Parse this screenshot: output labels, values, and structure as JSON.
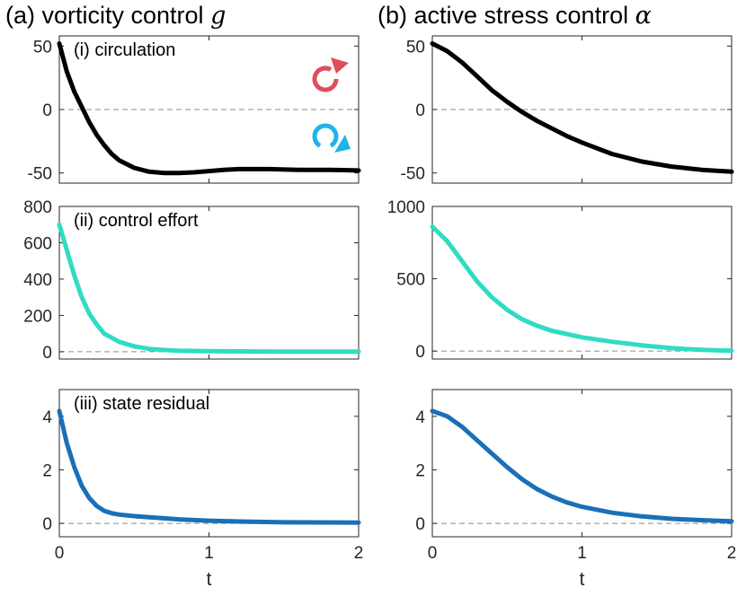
{
  "column_titles": [
    {
      "label": "(a) vorticity control",
      "symbol": "g"
    },
    {
      "label": "(b) active stress control",
      "symbol": "α"
    }
  ],
  "colors": {
    "circulation": "#000000",
    "control_effort": "#2fdcc2",
    "state_residual": "#1a6fb8",
    "zero_line": "#8c8c8c",
    "arrow_ccw": "#e04c5a",
    "arrow_cw": "#1fb4e8"
  },
  "icons": [
    "counterclockwise-arrow-icon",
    "clockwise-arrow-icon"
  ],
  "chart_data": [
    {
      "type": "line",
      "id": "a1",
      "title": "(i) circulation",
      "color_key": "circulation",
      "xlabel": "",
      "ylabel": "",
      "xlim": [
        0,
        2
      ],
      "ylim": [
        -58,
        58
      ],
      "yticks": [
        -50,
        0,
        50
      ],
      "ytick_labels": [
        "-50",
        "0",
        "50"
      ],
      "xticks": [
        0,
        1,
        2
      ],
      "xtick_labels": [],
      "zero_line": 0,
      "series": [
        {
          "name": "circulation",
          "x": [
            0,
            0.05,
            0.1,
            0.15,
            0.2,
            0.25,
            0.3,
            0.35,
            0.4,
            0.5,
            0.6,
            0.7,
            0.8,
            0.9,
            1.0,
            1.1,
            1.2,
            1.4,
            1.6,
            1.8,
            2.0
          ],
          "y": [
            52,
            30,
            14,
            2,
            -10,
            -20,
            -28,
            -35,
            -40,
            -46,
            -49,
            -50,
            -50,
            -49.5,
            -48.5,
            -47.5,
            -47,
            -47,
            -47.5,
            -47.5,
            -48
          ]
        }
      ]
    },
    {
      "type": "line",
      "id": "a2",
      "title": "(ii) control effort",
      "color_key": "control_effort",
      "xlabel": "",
      "ylabel": "",
      "xlim": [
        0,
        2
      ],
      "ylim": [
        -40,
        800
      ],
      "yticks": [
        0,
        200,
        400,
        600,
        800
      ],
      "ytick_labels": [
        "0",
        "200",
        "400",
        "600",
        "800"
      ],
      "xticks": [
        0,
        1,
        2
      ],
      "xtick_labels": [],
      "zero_line": 0,
      "series": [
        {
          "name": "control effort",
          "x": [
            0,
            0.05,
            0.1,
            0.15,
            0.2,
            0.25,
            0.3,
            0.4,
            0.5,
            0.6,
            0.7,
            0.8,
            1.0,
            1.2,
            1.5,
            2.0
          ],
          "y": [
            700,
            560,
            420,
            300,
            210,
            150,
            100,
            55,
            30,
            16,
            10,
            6,
            3,
            2,
            1,
            1
          ]
        }
      ]
    },
    {
      "type": "line",
      "id": "a3",
      "title": "(iii) state residual",
      "color_key": "state_residual",
      "xlabel": "t",
      "ylabel": "",
      "xlim": [
        0,
        2
      ],
      "ylim": [
        -0.5,
        5
      ],
      "yticks": [
        0,
        2,
        4
      ],
      "ytick_labels": [
        "0",
        "2",
        "4"
      ],
      "xticks": [
        0,
        1,
        2
      ],
      "xtick_labels": [
        "0",
        "1",
        "2"
      ],
      "zero_line": 0,
      "series": [
        {
          "name": "state residual",
          "x": [
            0,
            0.05,
            0.1,
            0.15,
            0.2,
            0.25,
            0.3,
            0.35,
            0.4,
            0.5,
            0.6,
            0.7,
            0.8,
            1.0,
            1.2,
            1.5,
            2.0
          ],
          "y": [
            4.2,
            3.0,
            2.1,
            1.4,
            0.95,
            0.65,
            0.47,
            0.38,
            0.33,
            0.27,
            0.23,
            0.19,
            0.15,
            0.1,
            0.07,
            0.04,
            0.03
          ]
        }
      ]
    },
    {
      "type": "line",
      "id": "b1",
      "title": "",
      "color_key": "circulation",
      "xlabel": "",
      "ylabel": "",
      "xlim": [
        0,
        2
      ],
      "ylim": [
        -58,
        58
      ],
      "yticks": [
        -50,
        0,
        50
      ],
      "ytick_labels": [
        "-50",
        "0",
        "50"
      ],
      "xticks": [
        0,
        1,
        2
      ],
      "xtick_labels": [],
      "zero_line": 0,
      "series": [
        {
          "name": "circulation",
          "x": [
            0,
            0.1,
            0.2,
            0.3,
            0.4,
            0.5,
            0.6,
            0.7,
            0.8,
            0.9,
            1.0,
            1.2,
            1.4,
            1.6,
            1.8,
            2.0
          ],
          "y": [
            52,
            46,
            37,
            26,
            15,
            6,
            -2,
            -9,
            -15,
            -21,
            -26,
            -35,
            -41,
            -45,
            -47.5,
            -49
          ]
        }
      ]
    },
    {
      "type": "line",
      "id": "b2",
      "title": "",
      "color_key": "control_effort",
      "xlabel": "",
      "ylabel": "",
      "xlim": [
        0,
        2
      ],
      "ylim": [
        -55,
        1000
      ],
      "yticks": [
        0,
        500,
        1000
      ],
      "ytick_labels": [
        "0",
        "500",
        "1000"
      ],
      "xticks": [
        0,
        1,
        2
      ],
      "xtick_labels": [],
      "zero_line": 0,
      "series": [
        {
          "name": "control effort",
          "x": [
            0,
            0.1,
            0.2,
            0.3,
            0.4,
            0.5,
            0.6,
            0.7,
            0.8,
            1.0,
            1.2,
            1.4,
            1.6,
            1.8,
            2.0
          ],
          "y": [
            860,
            760,
            620,
            480,
            370,
            285,
            220,
            175,
            140,
            95,
            65,
            40,
            20,
            8,
            3
          ]
        }
      ]
    },
    {
      "type": "line",
      "id": "b3",
      "title": "",
      "color_key": "state_residual",
      "xlabel": "t",
      "ylabel": "",
      "xlim": [
        0,
        2
      ],
      "ylim": [
        -0.5,
        5
      ],
      "yticks": [
        0,
        2,
        4
      ],
      "ytick_labels": [
        "0",
        "2",
        "4"
      ],
      "xticks": [
        0,
        1,
        2
      ],
      "xtick_labels": [
        "0",
        "1",
        "2"
      ],
      "zero_line": 0,
      "series": [
        {
          "name": "state residual",
          "x": [
            0,
            0.1,
            0.2,
            0.3,
            0.4,
            0.5,
            0.6,
            0.7,
            0.8,
            0.9,
            1.0,
            1.2,
            1.4,
            1.6,
            1.8,
            2.0
          ],
          "y": [
            4.2,
            4.0,
            3.6,
            3.1,
            2.6,
            2.1,
            1.65,
            1.28,
            1.0,
            0.78,
            0.62,
            0.4,
            0.26,
            0.17,
            0.12,
            0.08
          ]
        }
      ]
    }
  ]
}
